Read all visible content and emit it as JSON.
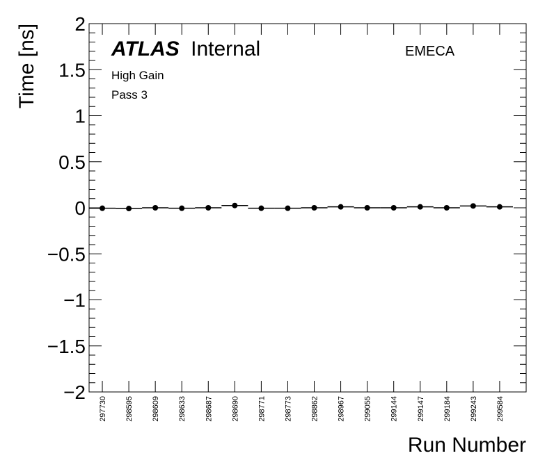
{
  "chart_data": {
    "type": "scatter",
    "title": "",
    "xlabel": "Run Number",
    "ylabel": "Time [ns]",
    "ylim": [
      -2,
      2
    ],
    "y_ticks": [
      {
        "value": 2,
        "label": "2"
      },
      {
        "value": 1.5,
        "label": "1.5"
      },
      {
        "value": 1,
        "label": "1"
      },
      {
        "value": 0.5,
        "label": "0.5"
      },
      {
        "value": 0,
        "label": "0"
      },
      {
        "value": -0.5,
        "label": "−0.5"
      },
      {
        "value": -1,
        "label": "−1"
      },
      {
        "value": -1.5,
        "label": "−1.5"
      },
      {
        "value": -2,
        "label": "−2"
      }
    ],
    "categories": [
      "297730",
      "298595",
      "298609",
      "298633",
      "298687",
      "298690",
      "298771",
      "298773",
      "298862",
      "298967",
      "299055",
      "299144",
      "299147",
      "299184",
      "299243",
      "299584"
    ],
    "values": [
      -0.005,
      -0.008,
      0.0,
      -0.005,
      0.0,
      0.025,
      -0.005,
      -0.005,
      0.0,
      0.01,
      0.0,
      0.0,
      0.01,
      0.0,
      0.02,
      0.01
    ],
    "grid": false,
    "annotations": {
      "atlas_bold": "ATLAS",
      "atlas_rest": "Internal",
      "region": "EMECA",
      "gain": "High Gain",
      "pass": "Pass 3"
    },
    "colors": {
      "axis": "#000000",
      "marker": "#000000",
      "background": "#ffffff"
    }
  }
}
